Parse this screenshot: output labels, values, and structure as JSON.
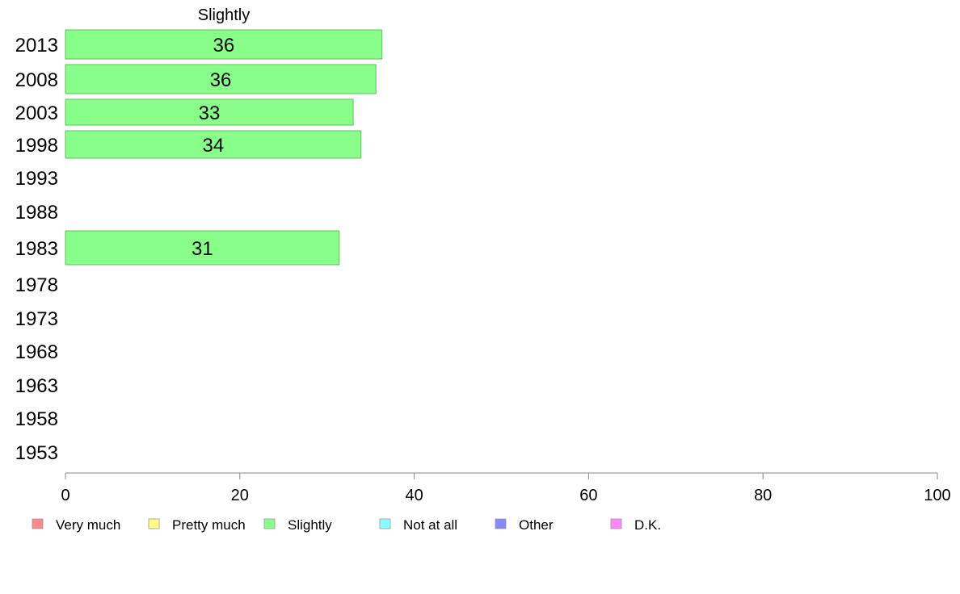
{
  "chart_data": {
    "type": "bar",
    "orientation": "horizontal",
    "header": "Slightly",
    "categories": [
      "2013",
      "2008",
      "2003",
      "1998",
      "1993",
      "1988",
      "1983",
      "1978",
      "1973",
      "1968",
      "1963",
      "1958",
      "1953"
    ],
    "series": [
      {
        "name": "Slightly",
        "color": "#88ff88",
        "values": [
          36.3,
          35.6,
          33.0,
          33.9,
          null,
          null,
          31.4,
          null,
          null,
          null,
          null,
          null,
          null
        ],
        "labels": [
          "36",
          "36",
          "33",
          "34",
          "",
          "",
          "31",
          "",
          "",
          "",
          "",
          "",
          ""
        ]
      }
    ],
    "xlim": [
      0,
      100
    ],
    "xticks": [
      0,
      20,
      40,
      60,
      80,
      100
    ],
    "legend": {
      "placement": "bottom",
      "items": [
        {
          "label": "Very much",
          "color": "#ff8888"
        },
        {
          "label": "Pretty much",
          "color": "#ffff88"
        },
        {
          "label": "Slightly",
          "color": "#88ff88"
        },
        {
          "label": "Not at all",
          "color": "#88ffff"
        },
        {
          "label": "Other",
          "color": "#8888ff"
        },
        {
          "label": "D.K.",
          "color": "#ff88ff"
        }
      ]
    },
    "grid": false
  }
}
